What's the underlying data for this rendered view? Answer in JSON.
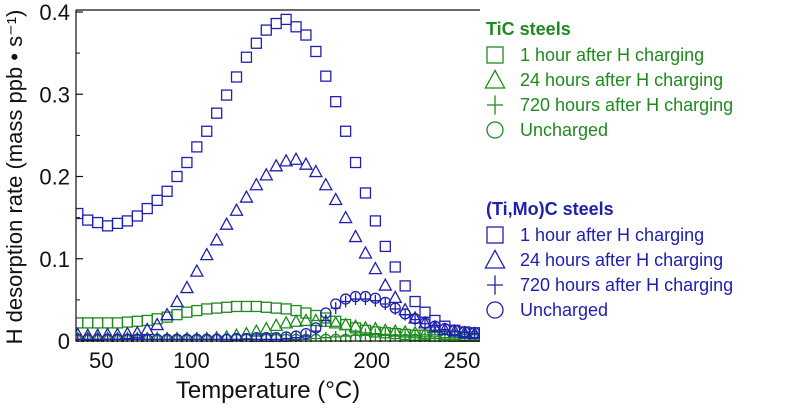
{
  "chart_data": {
    "type": "scatter",
    "title": "",
    "xlabel": "Temperature (°C)",
    "ylabel": "H desorption rate (mass ppb • s⁻¹)",
    "xlim": [
      36,
      260
    ],
    "ylim": [
      0,
      0.4
    ],
    "xticks": [
      50,
      100,
      150,
      200,
      250
    ],
    "yticks": [
      0,
      0.1,
      0.2,
      0.3,
      0.4
    ],
    "ytick_labels": [
      "0",
      "0.1",
      "0.2",
      "0.3",
      "0.4"
    ],
    "grid": false,
    "legend_placement": "right outside",
    "x": [
      37,
      42.5,
      48,
      53.5,
      59,
      64.5,
      70,
      75.5,
      81,
      86.5,
      92,
      97.5,
      103,
      108.5,
      114,
      119.5,
      125,
      130.5,
      136,
      141.5,
      147,
      152.5,
      158,
      163.5,
      169,
      174.5,
      180,
      185.5,
      191,
      196.5,
      202,
      207.5,
      213,
      218.5,
      224,
      229.5,
      235,
      240.5,
      246,
      251.5,
      257
    ],
    "groups": [
      {
        "name": "TiC steels",
        "color": "#1f8a1f",
        "series": [
          {
            "name": "1 hour after H charging",
            "marker": "square",
            "values": [
              0.022,
              0.022,
              0.022,
              0.022,
              0.022,
              0.023,
              0.024,
              0.025,
              0.027,
              0.029,
              0.032,
              0.035,
              0.037,
              0.039,
              0.04,
              0.041,
              0.042,
              0.042,
              0.042,
              0.041,
              0.04,
              0.039,
              0.037,
              0.034,
              0.031,
              0.028,
              0.024,
              0.02,
              0.016,
              0.013,
              0.011,
              0.01,
              0.009,
              0.008,
              0.007,
              0.007,
              0.006,
              0.006,
              0.005,
              0.005,
              0.005
            ]
          },
          {
            "name": "24 hours after H charging",
            "marker": "triangle",
            "values": [
              0.003,
              0.003,
              0.003,
              0.003,
              0.003,
              0.003,
              0.003,
              0.003,
              0.003,
              0.003,
              0.003,
              0.003,
              0.003,
              0.003,
              0.004,
              0.005,
              0.007,
              0.009,
              0.012,
              0.015,
              0.019,
              0.022,
              0.024,
              0.025,
              0.025,
              0.024,
              0.022,
              0.02,
              0.018,
              0.016,
              0.015,
              0.013,
              0.012,
              0.011,
              0.01,
              0.009,
              0.009,
              0.008,
              0.008,
              0.007,
              0.007
            ]
          },
          {
            "name": "720 hours after H charging",
            "marker": "plus",
            "values": [
              0.002,
              0.002,
              0.002,
              0.002,
              0.002,
              0.002,
              0.002,
              0.002,
              0.002,
              0.002,
              0.002,
              0.002,
              0.002,
              0.002,
              0.002,
              0.002,
              0.002,
              0.002,
              0.002,
              0.002,
              0.002,
              0.002,
              0.002,
              0.002,
              0.003,
              0.004,
              0.005,
              0.006,
              0.007,
              0.008,
              0.008,
              0.008,
              0.007,
              0.007,
              0.006,
              0.005,
              0.005,
              0.004,
              0.004,
              0.003,
              0.003
            ]
          },
          {
            "name": "Uncharged",
            "marker": "circle",
            "values": [
              0.002,
              0.002,
              0.002,
              0.002,
              0.002,
              0.002,
              0.002,
              0.002,
              0.002,
              0.002,
              0.002,
              0.002,
              0.002,
              0.002,
              0.002,
              0.002,
              0.002,
              0.002,
              0.002,
              0.002,
              0.002,
              0.002,
              0.002,
              0.002,
              0.002,
              0.002,
              0.002,
              0.002,
              0.002,
              0.002,
              0.002,
              0.002,
              0.002,
              0.002,
              0.002,
              0.002,
              0.002,
              0.002,
              0.002,
              0.002,
              0.002
            ]
          }
        ]
      },
      {
        "name": "(Ti,Mo)C steels",
        "color": "#2020b0",
        "series": [
          {
            "name": "1 hour after H charging",
            "marker": "square",
            "values": [
              0.155,
              0.147,
              0.144,
              0.14,
              0.143,
              0.146,
              0.152,
              0.161,
              0.171,
              0.182,
              0.2,
              0.217,
              0.236,
              0.255,
              0.277,
              0.299,
              0.321,
              0.345,
              0.362,
              0.378,
              0.386,
              0.391,
              0.382,
              0.372,
              0.352,
              0.322,
              0.291,
              0.255,
              0.217,
              0.18,
              0.146,
              0.115,
              0.09,
              0.067,
              0.048,
              0.035,
              0.025,
              0.018,
              0.013,
              0.011,
              0.01
            ]
          },
          {
            "name": "24 hours after H charging",
            "marker": "triangle",
            "values": [
              0.008,
              0.007,
              0.007,
              0.008,
              0.008,
              0.009,
              0.01,
              0.014,
              0.02,
              0.032,
              0.048,
              0.065,
              0.085,
              0.105,
              0.123,
              0.142,
              0.159,
              0.175,
              0.19,
              0.202,
              0.213,
              0.219,
              0.221,
              0.215,
              0.206,
              0.19,
              0.172,
              0.15,
              0.127,
              0.107,
              0.088,
              0.068,
              0.053,
              0.038,
              0.028,
              0.022,
              0.017,
              0.014,
              0.012,
              0.01,
              0.009
            ]
          },
          {
            "name": "720 hours after H charging",
            "marker": "plus",
            "values": [
              0.002,
              0.002,
              0.002,
              0.002,
              0.002,
              0.002,
              0.002,
              0.002,
              0.002,
              0.002,
              0.002,
              0.002,
              0.002,
              0.002,
              0.002,
              0.002,
              0.002,
              0.002,
              0.002,
              0.002,
              0.002,
              0.003,
              0.004,
              0.006,
              0.012,
              0.025,
              0.04,
              0.048,
              0.051,
              0.051,
              0.049,
              0.045,
              0.039,
              0.032,
              0.026,
              0.021,
              0.017,
              0.014,
              0.012,
              0.01,
              0.009
            ]
          },
          {
            "name": "Uncharged",
            "marker": "circle",
            "values": [
              0.002,
              0.002,
              0.002,
              0.002,
              0.002,
              0.002,
              0.002,
              0.002,
              0.002,
              0.002,
              0.002,
              0.002,
              0.002,
              0.002,
              0.002,
              0.002,
              0.003,
              0.003,
              0.004,
              0.004,
              0.004,
              0.005,
              0.006,
              0.009,
              0.016,
              0.034,
              0.045,
              0.051,
              0.054,
              0.054,
              0.052,
              0.047,
              0.04,
              0.033,
              0.027,
              0.022,
              0.018,
              0.015,
              0.013,
              0.011,
              0.01
            ]
          }
        ]
      }
    ]
  }
}
